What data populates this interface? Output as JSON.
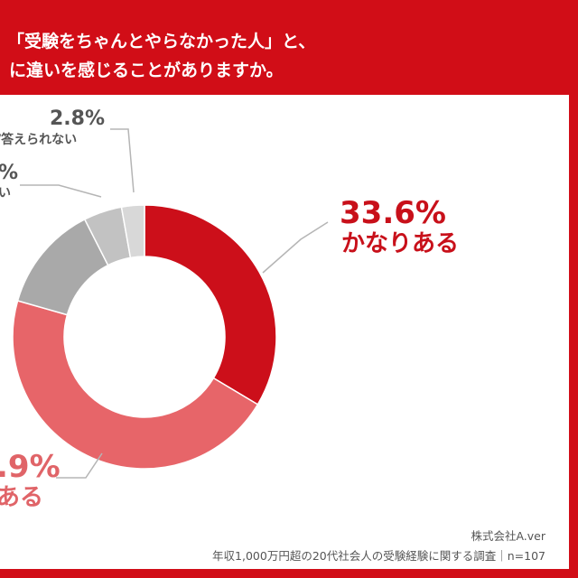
{
  "title": {
    "line1": "「受験をちゃんとやらなかった人」と、",
    "line2": "に違いを感じることがありますか。"
  },
  "chart_data": {
    "type": "pie",
    "donut": true,
    "slices": [
      {
        "value": 33.6,
        "pct_text": "33.6%",
        "label": "かなりある",
        "color": "#cc0f1a"
      },
      {
        "value": 45.9,
        "pct_text": ".9%",
        "label": "ある",
        "color": "#e76569"
      },
      {
        "value": 13.1,
        "pct_text": "",
        "label": "",
        "color": "#a9a9a9"
      },
      {
        "value": 4.7,
        "pct_text": "%",
        "label": "い",
        "color": "#c2c2c2"
      },
      {
        "value": 2.8,
        "pct_text": "2.8%",
        "label": "/答えられない",
        "color": "#d8d8d8"
      }
    ]
  },
  "footer": {
    "company": "株式会社A.ver",
    "survey": "年収1,000万円超の20代社会人の受験経験に関する調査｜n=107"
  }
}
